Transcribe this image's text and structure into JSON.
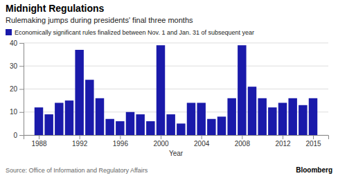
{
  "chart_data": {
    "type": "bar",
    "title": "Midnight Regulations",
    "subtitle": "Rulemaking jumps during presidents' final three months",
    "xlabel": "Year",
    "annotations": [
      "Source: Office of Information and Regulatory Affairs",
      "Bloomberg"
    ],
    "x": [
      1988,
      1989,
      1990,
      1991,
      1992,
      1993,
      1994,
      1995,
      1996,
      1997,
      1998,
      1999,
      2000,
      2001,
      2002,
      2003,
      2004,
      2005,
      2006,
      2007,
      2008,
      2009,
      2010,
      2011,
      2012,
      2013,
      2014,
      2015
    ],
    "series": [
      {
        "name": "Economically significant rules finalized between Nov. 1 and Jan. 31 of subsequent year",
        "color": "#1a1aaa",
        "values": [
          12,
          9,
          14,
          15,
          37,
          24,
          16,
          7,
          6,
          10,
          9,
          6,
          39,
          9,
          5,
          14,
          14,
          7,
          8,
          16,
          39,
          21,
          16,
          12,
          14,
          16,
          13,
          16
        ]
      }
    ],
    "xlim": [
      1986.5,
      2016.5
    ],
    "xticks": [
      1988,
      1992,
      1996,
      2000,
      2004,
      2008,
      2012,
      2015
    ],
    "ylim": [
      0,
      40
    ],
    "yticks": [
      0,
      10,
      20,
      30,
      40
    ],
    "grid": true,
    "legend": "upper left"
  }
}
